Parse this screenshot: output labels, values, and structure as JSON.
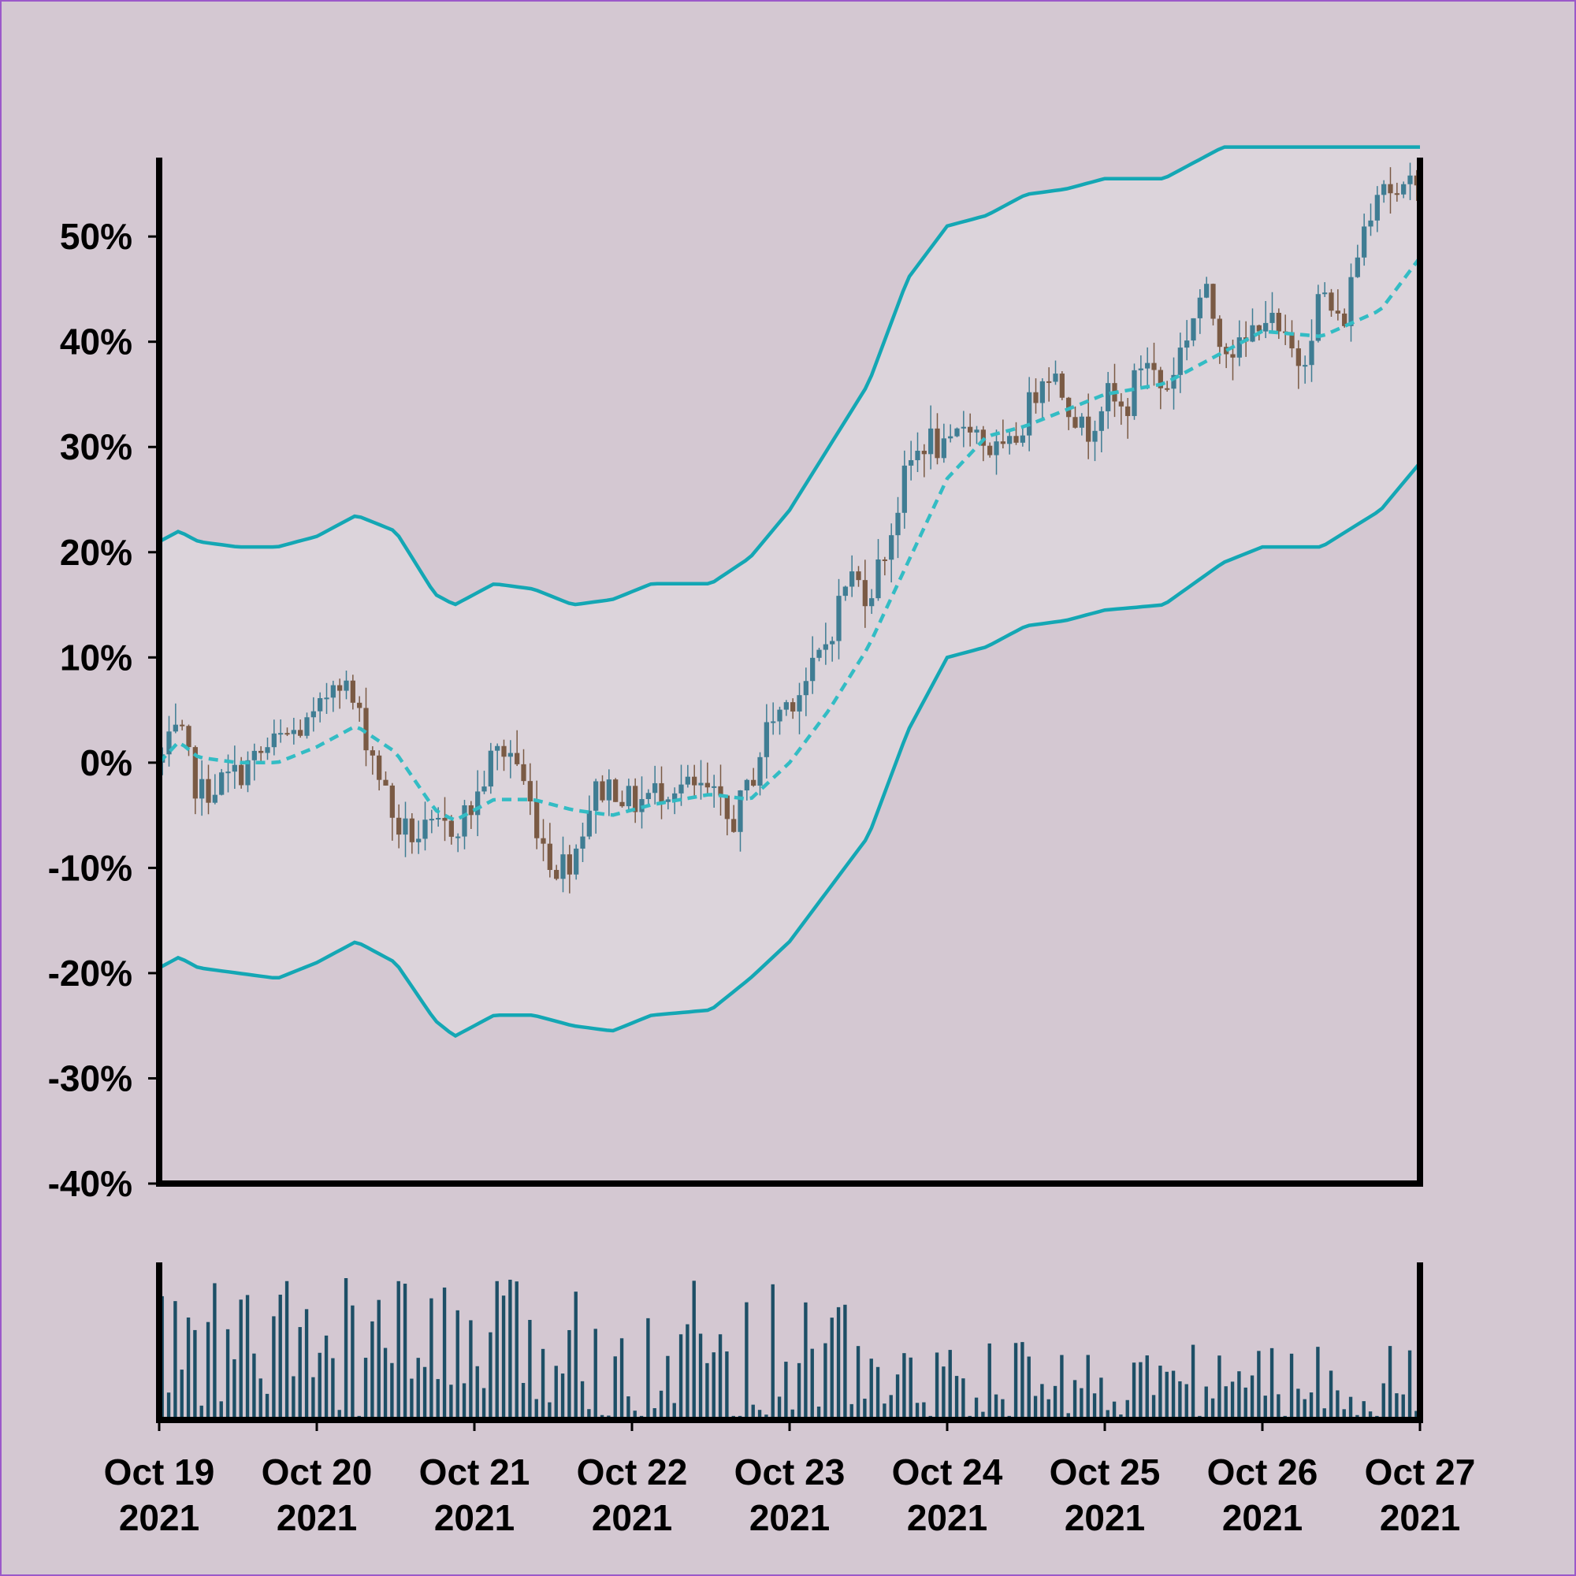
{
  "colors": {
    "background": "#d4c8d2",
    "band_fill": "#dcd4db",
    "band_line": "#14a7b4",
    "sma_line": "#33bcc4",
    "candle_up": "#3f7d93",
    "candle_down": "#7a5a44",
    "volume": "#1d4f66",
    "axis": "#000000"
  },
  "chart_data": {
    "type": "candlestick",
    "y_axis": {
      "format": "percent",
      "ylim": [
        -40,
        57.5
      ],
      "ticks": [
        -40,
        -30,
        -20,
        -10,
        0,
        10,
        20,
        30,
        40,
        50
      ],
      "tick_labels": [
        "-40%",
        "-30%",
        "-20%",
        "-10%",
        "0%",
        "10%",
        "20%",
        "30%",
        "40%",
        "50%"
      ]
    },
    "x_axis": {
      "start": "2021-10-19",
      "end": "2021-10-27",
      "tick_labels": [
        [
          "Oct 19",
          "2021"
        ],
        [
          "Oct 20",
          "2021"
        ],
        [
          "Oct 21",
          "2021"
        ],
        [
          "Oct 22",
          "2021"
        ],
        [
          "Oct 23",
          "2021"
        ],
        [
          "Oct 24",
          "2021"
        ],
        [
          "Oct 25",
          "2021"
        ],
        [
          "Oct 26",
          "2021"
        ],
        [
          "Oct 27",
          "2021"
        ]
      ]
    },
    "close_path": [
      [
        "2021-10-19 00:00",
        0
      ],
      [
        "2021-10-19 03:00",
        3
      ],
      [
        "2021-10-19 06:00",
        -3
      ],
      [
        "2021-10-19 12:00",
        -1
      ],
      [
        "2021-10-19 18:00",
        2
      ],
      [
        "2021-10-20 00:00",
        4
      ],
      [
        "2021-10-20 03:00",
        9
      ],
      [
        "2021-10-20 06:00",
        5
      ],
      [
        "2021-10-20 09:00",
        0
      ],
      [
        "2021-10-20 12:00",
        -6
      ],
      [
        "2021-10-20 15:00",
        -7
      ],
      [
        "2021-10-20 21:00",
        -6
      ],
      [
        "2021-10-21 00:00",
        -4
      ],
      [
        "2021-10-21 03:00",
        1
      ],
      [
        "2021-10-21 06:00",
        1
      ],
      [
        "2021-10-21 09:00",
        -5
      ],
      [
        "2021-10-21 12:00",
        -10
      ],
      [
        "2021-10-21 15:00",
        -9
      ],
      [
        "2021-10-21 18:00",
        -3
      ],
      [
        "2021-10-21 21:00",
        -2
      ],
      [
        "2021-10-22 00:00",
        -4
      ],
      [
        "2021-10-22 06:00",
        -2
      ],
      [
        "2021-10-22 12:00",
        -3
      ],
      [
        "2021-10-22 15:00",
        -6
      ],
      [
        "2021-10-22 18:00",
        -2
      ],
      [
        "2021-10-22 21:00",
        4
      ],
      [
        "2021-10-23 00:00",
        6
      ],
      [
        "2021-10-23 03:00",
        8
      ],
      [
        "2021-10-23 06:00",
        12
      ],
      [
        "2021-10-23 09:00",
        18
      ],
      [
        "2021-10-23 12:00",
        16
      ],
      [
        "2021-10-23 15:00",
        21
      ],
      [
        "2021-10-23 18:00",
        28
      ],
      [
        "2021-10-23 21:00",
        31
      ],
      [
        "2021-10-24 00:00",
        29
      ],
      [
        "2021-10-24 03:00",
        33
      ],
      [
        "2021-10-24 06:00",
        30
      ],
      [
        "2021-10-24 09:00",
        29
      ],
      [
        "2021-10-24 12:00",
        33
      ],
      [
        "2021-10-24 15:00",
        38
      ],
      [
        "2021-10-24 18:00",
        35
      ],
      [
        "2021-10-24 21:00",
        31
      ],
      [
        "2021-10-25 00:00",
        35
      ],
      [
        "2021-10-25 03:00",
        33
      ],
      [
        "2021-10-25 06:00",
        39
      ],
      [
        "2021-10-25 09:00",
        35
      ],
      [
        "2021-10-25 12:00",
        40
      ],
      [
        "2021-10-25 15:00",
        45
      ],
      [
        "2021-10-25 18:00",
        40
      ],
      [
        "2021-10-25 21:00",
        39
      ],
      [
        "2021-10-26 00:00",
        43
      ],
      [
        "2021-10-26 03:00",
        40
      ],
      [
        "2021-10-26 06:00",
        38
      ],
      [
        "2021-10-26 09:00",
        45
      ],
      [
        "2021-10-26 12:00",
        41
      ],
      [
        "2021-10-26 15:00",
        50
      ],
      [
        "2021-10-26 18:00",
        56
      ],
      [
        "2021-10-26 21:00",
        53
      ],
      [
        "2021-10-27 00:00",
        57
      ],
      [
        "2021-10-27 03:00",
        52
      ],
      [
        "2021-10-27 06:00",
        47
      ]
    ],
    "sma": [
      [
        "2021-10-19 00:00",
        0
      ],
      [
        "2021-10-19 03:00",
        2
      ],
      [
        "2021-10-19 06:00",
        0.5
      ],
      [
        "2021-10-19 12:00",
        0
      ],
      [
        "2021-10-19 18:00",
        0
      ],
      [
        "2021-10-20 00:00",
        1.5
      ],
      [
        "2021-10-20 06:00",
        3.5
      ],
      [
        "2021-10-20 12:00",
        1
      ],
      [
        "2021-10-20 18:00",
        -4.5
      ],
      [
        "2021-10-20 21:00",
        -5.5
      ],
      [
        "2021-10-21 03:00",
        -3.5
      ],
      [
        "2021-10-21 09:00",
        -3.5
      ],
      [
        "2021-10-21 15:00",
        -4.5
      ],
      [
        "2021-10-21 21:00",
        -5
      ],
      [
        "2021-10-22 03:00",
        -4
      ],
      [
        "2021-10-22 12:00",
        -3
      ],
      [
        "2021-10-22 18:00",
        -3.5
      ],
      [
        "2021-10-23 00:00",
        0
      ],
      [
        "2021-10-23 06:00",
        5
      ],
      [
        "2021-10-23 12:00",
        11
      ],
      [
        "2021-10-23 18:00",
        19
      ],
      [
        "2021-10-24 00:00",
        27
      ],
      [
        "2021-10-24 06:00",
        31
      ],
      [
        "2021-10-24 12:00",
        32
      ],
      [
        "2021-10-24 18:00",
        33.5
      ],
      [
        "2021-10-25 00:00",
        35
      ],
      [
        "2021-10-25 09:00",
        36
      ],
      [
        "2021-10-25 18:00",
        39
      ],
      [
        "2021-10-26 00:00",
        41
      ],
      [
        "2021-10-26 09:00",
        40.5
      ],
      [
        "2021-10-26 18:00",
        43
      ],
      [
        "2021-10-27 00:00",
        48
      ],
      [
        "2021-10-27 06:00",
        51.5
      ]
    ],
    "upper_band": [
      [
        "2021-10-19 00:00",
        21
      ],
      [
        "2021-10-19 03:00",
        22
      ],
      [
        "2021-10-19 06:00",
        21
      ],
      [
        "2021-10-19 12:00",
        20.5
      ],
      [
        "2021-10-19 18:00",
        20.5
      ],
      [
        "2021-10-20 00:00",
        21.5
      ],
      [
        "2021-10-20 06:00",
        23.5
      ],
      [
        "2021-10-20 12:00",
        22
      ],
      [
        "2021-10-20 18:00",
        16
      ],
      [
        "2021-10-20 21:00",
        15
      ],
      [
        "2021-10-21 03:00",
        17
      ],
      [
        "2021-10-21 09:00",
        16.5
      ],
      [
        "2021-10-21 15:00",
        15
      ],
      [
        "2021-10-21 21:00",
        15.5
      ],
      [
        "2021-10-22 03:00",
        17
      ],
      [
        "2021-10-22 12:00",
        17
      ],
      [
        "2021-10-22 18:00",
        19.5
      ],
      [
        "2021-10-23 00:00",
        24
      ],
      [
        "2021-10-23 06:00",
        30
      ],
      [
        "2021-10-23 12:00",
        36
      ],
      [
        "2021-10-23 18:00",
        46
      ],
      [
        "2021-10-24 00:00",
        51
      ],
      [
        "2021-10-24 06:00",
        52
      ],
      [
        "2021-10-24 12:00",
        54
      ],
      [
        "2021-10-24 18:00",
        54.5
      ],
      [
        "2021-10-25 00:00",
        55.5
      ],
      [
        "2021-10-25 09:00",
        55.5
      ],
      [
        "2021-10-25 18:00",
        58.5
      ],
      [
        "2021-10-27 06:00",
        58.5
      ]
    ],
    "lower_band": [
      [
        "2021-10-19 00:00",
        -19.5
      ],
      [
        "2021-10-19 03:00",
        -18.5
      ],
      [
        "2021-10-19 06:00",
        -19.5
      ],
      [
        "2021-10-19 12:00",
        -20
      ],
      [
        "2021-10-19 18:00",
        -20.5
      ],
      [
        "2021-10-20 00:00",
        -19
      ],
      [
        "2021-10-20 06:00",
        -17
      ],
      [
        "2021-10-20 12:00",
        -19
      ],
      [
        "2021-10-20 18:00",
        -24.5
      ],
      [
        "2021-10-20 21:00",
        -26
      ],
      [
        "2021-10-21 03:00",
        -24
      ],
      [
        "2021-10-21 09:00",
        -24
      ],
      [
        "2021-10-21 15:00",
        -25
      ],
      [
        "2021-10-21 21:00",
        -25.5
      ],
      [
        "2021-10-22 03:00",
        -24
      ],
      [
        "2021-10-22 12:00",
        -23.5
      ],
      [
        "2021-10-22 18:00",
        -20.5
      ],
      [
        "2021-10-23 00:00",
        -17
      ],
      [
        "2021-10-23 06:00",
        -12
      ],
      [
        "2021-10-23 12:00",
        -7
      ],
      [
        "2021-10-23 18:00",
        3
      ],
      [
        "2021-10-24 00:00",
        10
      ],
      [
        "2021-10-24 06:00",
        11
      ],
      [
        "2021-10-24 12:00",
        13
      ],
      [
        "2021-10-24 18:00",
        13.5
      ],
      [
        "2021-10-25 00:00",
        14.5
      ],
      [
        "2021-10-25 09:00",
        15
      ],
      [
        "2021-10-25 18:00",
        19
      ],
      [
        "2021-10-26 00:00",
        20.5
      ],
      [
        "2021-10-26 09:00",
        20.5
      ],
      [
        "2021-10-26 18:00",
        24
      ],
      [
        "2021-10-27 00:00",
        28.5
      ],
      [
        "2021-10-27 06:00",
        31.5
      ]
    ]
  }
}
